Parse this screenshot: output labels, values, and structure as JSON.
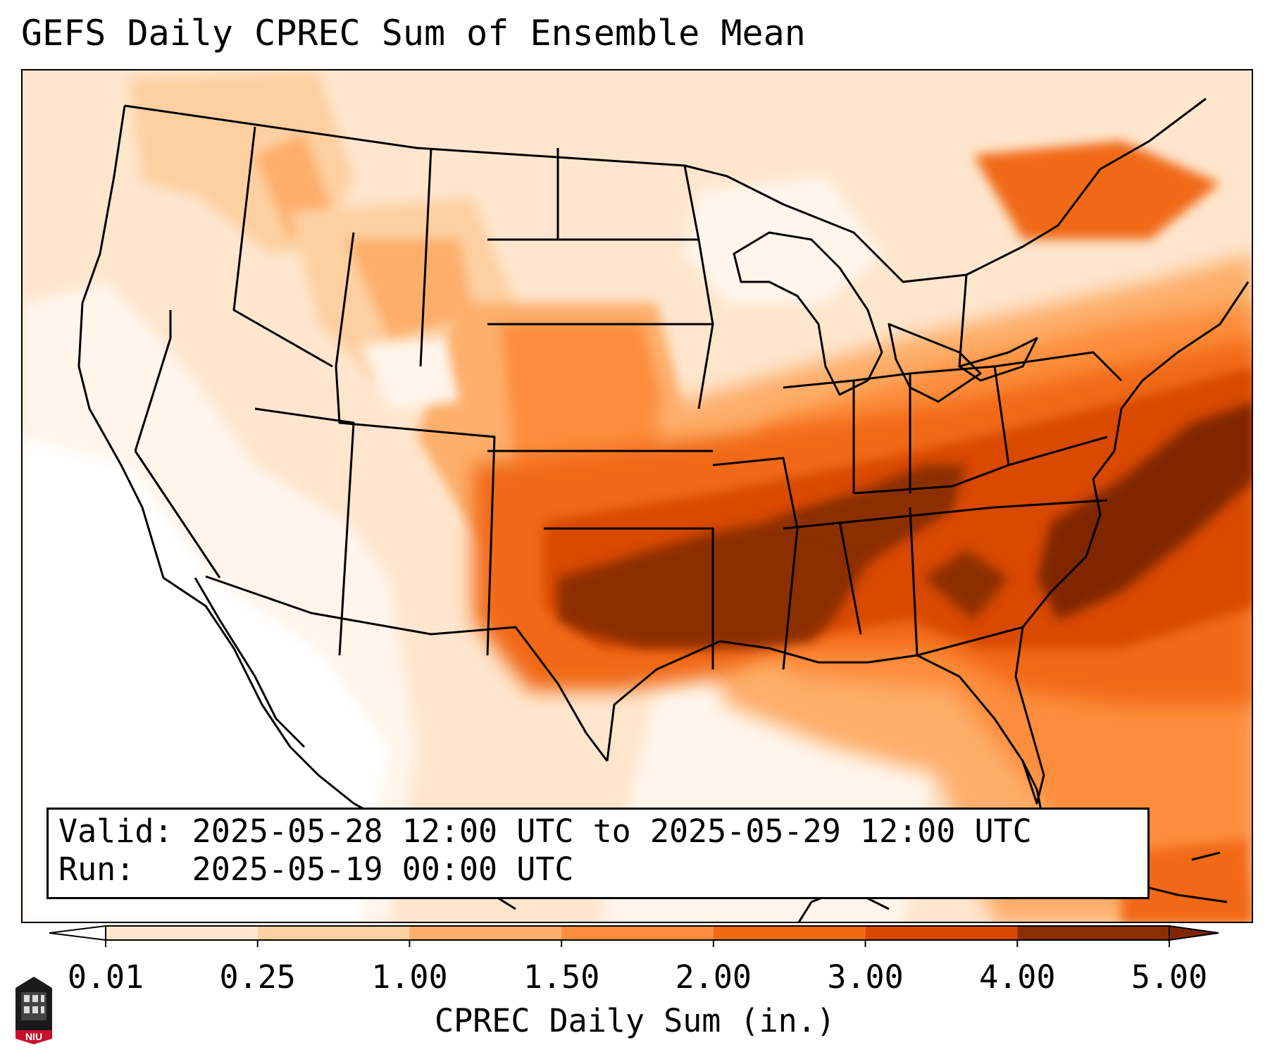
{
  "title": "GEFS Daily CPREC Sum of Ensemble Mean",
  "info": {
    "valid_label": "Valid:",
    "valid_value": "2025-05-28 12:00 UTC to 2025-05-29 12:00 UTC",
    "run_label": "Run:",
    "run_value": "2025-05-19 00:00 UTC"
  },
  "colorbar": {
    "label": "CPREC Daily Sum (in.)",
    "ticks": [
      "0.01",
      "0.25",
      "1.00",
      "1.50",
      "2.00",
      "3.00",
      "4.00",
      "5.00"
    ],
    "colors": [
      "#fff5eb",
      "#fee6ce",
      "#fdd0a2",
      "#fdae6b",
      "#fd8d3c",
      "#f16913",
      "#d94801",
      "#8c2d04"
    ],
    "under_color": "#ffffff",
    "over_color": "#7f2704"
  },
  "logo": {
    "text": "NIU",
    "color": "#c8102e"
  }
}
